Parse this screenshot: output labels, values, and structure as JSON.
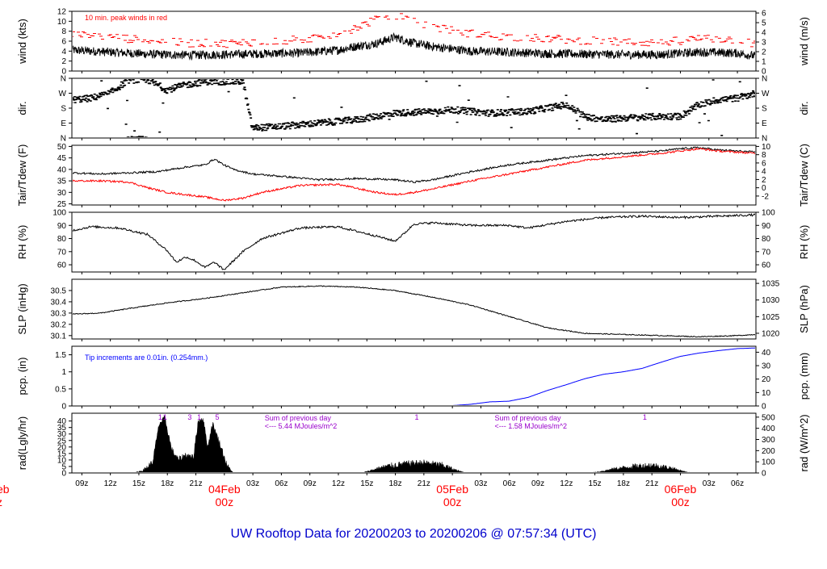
{
  "title": "UW Rooftop Data for 20200203  to  20200206 @ 07:57:34  (UTC)",
  "colors": {
    "axis": "#000000",
    "primary": "#000000",
    "secondary": "#ff0000",
    "precip": "#0000ff",
    "annotation": "#9900cc",
    "date": "#ff0000",
    "title": "#0000cc"
  },
  "x_axis": {
    "unit": "hours since 20200203 07:57 UTC",
    "range": [
      0,
      72
    ],
    "tick_hours": [
      1.05,
      4.05,
      7.05,
      10.05,
      13.05,
      16.05,
      19.05,
      22.05,
      25.05,
      28.05,
      31.05,
      34.05,
      37.05,
      40.05,
      43.05,
      46.05,
      49.05,
      52.05,
      55.05,
      58.05,
      61.05,
      64.05,
      67.05,
      70.05
    ],
    "tick_labels": [
      "09z",
      "12z",
      "15z",
      "18z",
      "21z",
      "",
      "03z",
      "06z",
      "09z",
      "12z",
      "15z",
      "18z",
      "21z",
      "",
      "03z",
      "06z",
      "09z",
      "12z",
      "15z",
      "18z",
      "21z",
      "",
      "03z",
      "06z"
    ],
    "date_markers": [
      {
        "hour": 16.05,
        "date": "04Feb",
        "time": "00z"
      },
      {
        "hour": 40.05,
        "date": "05Feb",
        "time": "00z"
      },
      {
        "hour": 64.05,
        "date": "06Feb",
        "time": "00z"
      }
    ],
    "left_partial": {
      "date": "eb",
      "time": "z"
    }
  },
  "chart_data": [
    {
      "type": "line",
      "name": "wind",
      "ylabel_left": "wind (kts)",
      "ylabel_right": "wind (m/s)",
      "ylim": [
        0,
        12
      ],
      "yticks_left": [
        0,
        2,
        4,
        6,
        8,
        10,
        12
      ],
      "right_scale": {
        "factor": 0.514444,
        "ticks": [
          0,
          1,
          2,
          3,
          4,
          5,
          6
        ]
      },
      "annotation": "10 min. peak winds in red",
      "series": [
        {
          "name": "wind",
          "style": "noisy",
          "noise": 0.9,
          "x": [
            0,
            4,
            8,
            12,
            16,
            20,
            24,
            28,
            30,
            32,
            34,
            36,
            38,
            42,
            46,
            50,
            54,
            58,
            62,
            66,
            70,
            72
          ],
          "y": [
            4.2,
            3.8,
            3.4,
            3.2,
            3.3,
            3.5,
            3.6,
            4.2,
            5.0,
            5.5,
            6.8,
            5.6,
            4.9,
            4.0,
            3.8,
            3.5,
            3.4,
            3.3,
            3.3,
            3.8,
            3.6,
            3.0
          ]
        },
        {
          "name": "10 min. peak winds",
          "style": "dashes",
          "noise": 0.8,
          "x": [
            0,
            4,
            8,
            12,
            16,
            20,
            24,
            28,
            30,
            32,
            34,
            36,
            38,
            42,
            46,
            50,
            54,
            58,
            62,
            66,
            70,
            72
          ],
          "y": [
            7.0,
            6.5,
            5.8,
            5.3,
            5.2,
            5.6,
            6.0,
            7.0,
            8.5,
            10.0,
            11.0,
            9.5,
            8.5,
            7.2,
            6.5,
            6.2,
            5.8,
            5.5,
            5.4,
            6.2,
            6.0,
            5.0
          ]
        }
      ]
    },
    {
      "type": "scatter",
      "name": "direction",
      "ylabel_left": "dir.",
      "ylabel_right": "dir.",
      "ylim": [
        0,
        360
      ],
      "ytick_values": [
        0,
        90,
        180,
        270,
        360
      ],
      "ytick_labels": [
        "N",
        "E",
        "S",
        "W",
        "N"
      ],
      "series": [
        {
          "name": "direction",
          "style": "points",
          "noise": 20,
          "x": [
            0,
            2,
            4,
            6,
            8,
            10,
            12,
            14,
            16,
            18,
            19,
            22,
            26,
            30,
            34,
            38,
            40,
            44,
            48,
            52,
            54,
            56,
            58,
            62,
            64,
            66,
            68,
            70,
            72
          ],
          "y": [
            230,
            240,
            270,
            350,
            350,
            290,
            320,
            340,
            340,
            340,
            60,
            70,
            90,
            110,
            150,
            160,
            170,
            150,
            160,
            200,
            130,
            110,
            120,
            130,
            130,
            200,
            230,
            240,
            270
          ]
        }
      ]
    },
    {
      "type": "line",
      "name": "temperature",
      "ylabel_left": "Tair/Tdew (F)",
      "ylabel_right": "Tair/Tdew (C)",
      "ylim": [
        24.5,
        50.5
      ],
      "yticks_left": [
        25,
        30,
        35,
        40,
        45,
        50
      ],
      "right_ticks_c": [
        -2,
        0,
        2,
        4,
        6,
        8,
        10
      ],
      "series": [
        {
          "name": "Tair",
          "style": "line",
          "noise": 0.4,
          "x": [
            0,
            3,
            6,
            9,
            12,
            14,
            15,
            16,
            17,
            19,
            22,
            26,
            30,
            34,
            36,
            38,
            42,
            46,
            50,
            54,
            58,
            62,
            64,
            66,
            68,
            70,
            72
          ],
          "y": [
            38.5,
            38.0,
            38.5,
            39.0,
            41.0,
            42.0,
            44.5,
            42.0,
            40.0,
            38.0,
            37.0,
            35.5,
            36.0,
            35.5,
            34.5,
            35.5,
            39.0,
            42.0,
            44.0,
            46.0,
            47.0,
            48.0,
            49.0,
            49.5,
            48.5,
            48.0,
            47.5
          ]
        },
        {
          "name": "Tdew",
          "style": "line",
          "noise": 0.4,
          "x": [
            0,
            3,
            6,
            8,
            10,
            12,
            14,
            16,
            18,
            20,
            24,
            28,
            32,
            34,
            36,
            38,
            42,
            46,
            50,
            54,
            58,
            62,
            64,
            66,
            68,
            70,
            72
          ],
          "y": [
            35.0,
            35.0,
            34.5,
            32.0,
            30.0,
            29.0,
            28.0,
            26.5,
            27.5,
            30.0,
            33.0,
            33.5,
            30.0,
            29.0,
            30.0,
            31.5,
            35.0,
            38.0,
            41.0,
            44.0,
            45.5,
            47.0,
            48.0,
            49.0,
            48.0,
            47.5,
            47.0
          ]
        }
      ]
    },
    {
      "type": "line",
      "name": "humidity",
      "ylabel_left": "RH (%)",
      "ylabel_right": "RH (%)",
      "ylim": [
        54.5,
        100
      ],
      "yticks_left": [
        60,
        70,
        80,
        90,
        100
      ],
      "right_ticks": [
        60,
        70,
        80,
        90,
        100
      ],
      "series": [
        {
          "name": "RH",
          "style": "line",
          "noise": 0.8,
          "x": [
            0,
            2,
            5,
            8,
            10,
            11,
            12,
            13,
            14,
            15,
            16,
            17,
            18,
            20,
            24,
            28,
            32,
            34,
            35,
            36,
            38,
            42,
            46,
            48,
            52,
            56,
            60,
            64,
            68,
            72
          ],
          "y": [
            86,
            89,
            88,
            83,
            71,
            62,
            66,
            63,
            58,
            62,
            56,
            63,
            70,
            80,
            88,
            89,
            82,
            78,
            84,
            91,
            92,
            90,
            90,
            88,
            93,
            96,
            97,
            96,
            97,
            98
          ]
        }
      ]
    },
    {
      "type": "line",
      "name": "pressure",
      "ylabel_left": "SLP (inHg)",
      "ylabel_right": "SLP (hPa)",
      "ylim": [
        30.07,
        30.6
      ],
      "yticks_left": [
        30.1,
        30.2,
        30.3,
        30.4,
        30.5
      ],
      "right_ticks_hpa": [
        1020,
        1025,
        1030,
        1035
      ],
      "series": [
        {
          "name": "SLP",
          "style": "line",
          "noise": 0.004,
          "x": [
            0,
            3,
            6,
            10,
            14,
            18,
            22,
            26,
            30,
            34,
            38,
            42,
            46,
            50,
            54,
            58,
            62,
            66,
            70,
            72
          ],
          "y": [
            30.29,
            30.3,
            30.34,
            30.39,
            30.43,
            30.48,
            30.53,
            30.54,
            30.53,
            30.5,
            30.44,
            30.37,
            30.27,
            30.17,
            30.12,
            30.11,
            30.1,
            30.09,
            30.1,
            30.11
          ]
        }
      ]
    },
    {
      "type": "line",
      "name": "precipitation",
      "ylabel_left": "pcp. (in)",
      "ylabel_right": "pcp. (mm)",
      "ylim": [
        0,
        1.75
      ],
      "yticks_left": [
        0,
        0.5,
        1.0,
        1.5
      ],
      "right_ticks_mm": [
        0,
        10,
        20,
        30,
        40
      ],
      "annotation": "Tip increments are 0.01in. (0.254mm.)",
      "series": [
        {
          "name": "precipitation",
          "style": "line",
          "noise": 0,
          "x": [
            0,
            40,
            42,
            44,
            46,
            48,
            50,
            52,
            54,
            56,
            58,
            60,
            62,
            64,
            66,
            68,
            70,
            72
          ],
          "y": [
            0,
            0.01,
            0.05,
            0.12,
            0.14,
            0.25,
            0.45,
            0.62,
            0.8,
            0.93,
            1.0,
            1.1,
            1.28,
            1.45,
            1.55,
            1.62,
            1.68,
            1.7
          ]
        }
      ]
    },
    {
      "type": "area",
      "name": "radiation",
      "ylabel_left": "rad(Lgly/hr)",
      "ylabel_right": "rad (W/m^2)",
      "ylim": [
        0,
        46
      ],
      "yticks_left": [
        0,
        5,
        10,
        15,
        20,
        25,
        30,
        35,
        40
      ],
      "right_ticks_wm2": [
        0,
        100,
        200,
        300,
        400,
        500
      ],
      "annotations": [
        {
          "hour": 20.3,
          "lines": [
            "Sum of previous day",
            "<--- 5.44 MJoules/m^2"
          ]
        },
        {
          "hour": 44.5,
          "lines": [
            "Sum of previous day",
            "<--- 1.58 MJoules/m^2"
          ]
        }
      ],
      "tip_markers": [
        {
          "hour": 9.3,
          "label": "1"
        },
        {
          "hour": 9.8,
          "label": "1"
        },
        {
          "hour": 12.4,
          "label": "3"
        },
        {
          "hour": 13.4,
          "label": "1"
        },
        {
          "hour": 15.3,
          "label": "5"
        },
        {
          "hour": 36.3,
          "label": "1"
        },
        {
          "hour": 60.3,
          "label": "1"
        }
      ],
      "series": [
        {
          "name": "radiation",
          "style": "area",
          "noise": 2.5,
          "x": [
            0,
            6.5,
            7.5,
            8.5,
            9.2,
            9.8,
            10.5,
            11.2,
            12.0,
            12.8,
            13.3,
            13.8,
            14.3,
            14.8,
            15.3,
            15.8,
            16.3,
            17.0,
            30.5,
            31.5,
            33.0,
            35.0,
            37.0,
            39.0,
            40.5,
            41.5,
            54.5,
            55.5,
            57.0,
            59.0,
            61.0,
            63.0,
            64.5,
            65.5,
            72
          ],
          "y": [
            0,
            0,
            2,
            8,
            38,
            42,
            18,
            10,
            14,
            12,
            40,
            42,
            20,
            38,
            28,
            18,
            6,
            0,
            0,
            2,
            5,
            7,
            8,
            6,
            2,
            0,
            0,
            1,
            3,
            5,
            6,
            4,
            1,
            0,
            0
          ]
        }
      ]
    }
  ]
}
